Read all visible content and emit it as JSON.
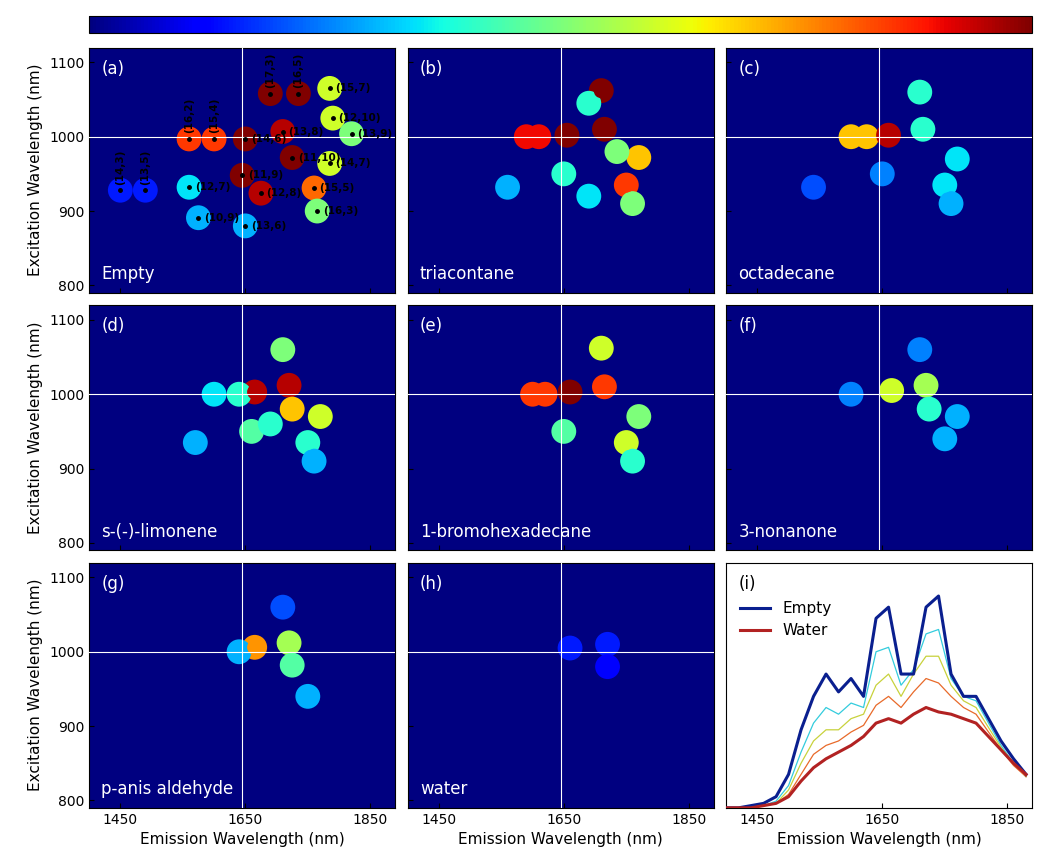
{
  "colorbar": {
    "range": [
      0,
      1
    ],
    "ticks": []
  },
  "chart_data": [
    {
      "type": "heatmap",
      "panel_label": "(a)",
      "sample": "Empty",
      "ylabel": "Excitation Wavelength (nm)",
      "xlim": [
        1400,
        1890
      ],
      "ylim": [
        790,
        1120
      ],
      "xticks": [
        1450,
        1650,
        1850
      ],
      "yticks": [
        800,
        900,
        1000,
        1100
      ],
      "tick_labels": "y",
      "crosshair": [
        1645,
        1000
      ],
      "peaks": [
        {
          "x": 1450,
          "y": 928,
          "intensity": 0.15,
          "label": "(14,3)"
        },
        {
          "x": 1490,
          "y": 928,
          "intensity": 0.15,
          "label": "(13,5)"
        },
        {
          "x": 1560,
          "y": 932,
          "intensity": 0.35,
          "label": "(12,7)"
        },
        {
          "x": 1575,
          "y": 891,
          "intensity": 0.3,
          "label": "(10,9)"
        },
        {
          "x": 1560,
          "y": 997,
          "intensity": 0.85,
          "label": "(16,2)"
        },
        {
          "x": 1600,
          "y": 997,
          "intensity": 0.85,
          "label": "(15,4)"
        },
        {
          "x": 1650,
          "y": 997,
          "intensity": 1.0,
          "label": "(14,6)"
        },
        {
          "x": 1645,
          "y": 948,
          "intensity": 1.0,
          "label": "(11,9)"
        },
        {
          "x": 1675,
          "y": 924,
          "intensity": 0.95,
          "label": "(12,8)"
        },
        {
          "x": 1650,
          "y": 880,
          "intensity": 0.3,
          "label": "(13,6)"
        },
        {
          "x": 1690,
          "y": 1058,
          "intensity": 1.0,
          "label": "(17,3)"
        },
        {
          "x": 1735,
          "y": 1058,
          "intensity": 1.0,
          "label": "(16,5)"
        },
        {
          "x": 1785,
          "y": 1065,
          "intensity": 0.6,
          "label": "(15,7)"
        },
        {
          "x": 1710,
          "y": 1007,
          "intensity": 0.95,
          "label": "(13,8)"
        },
        {
          "x": 1790,
          "y": 1025,
          "intensity": 0.6,
          "label": "(12,10)"
        },
        {
          "x": 1725,
          "y": 972,
          "intensity": 1.0,
          "label": "(11,10)"
        },
        {
          "x": 1820,
          "y": 1004,
          "intensity": 0.5,
          "label": "(13,9)"
        },
        {
          "x": 1785,
          "y": 964,
          "intensity": 0.6,
          "label": "(14,7)"
        },
        {
          "x": 1760,
          "y": 931,
          "intensity": 0.8,
          "label": "(15,5)"
        },
        {
          "x": 1765,
          "y": 900,
          "intensity": 0.5,
          "label": "(16,3)"
        }
      ]
    },
    {
      "type": "heatmap",
      "panel_label": "(b)",
      "sample": "triacontane",
      "xlim": [
        1400,
        1890
      ],
      "ylim": [
        790,
        1120
      ],
      "xticks": [
        1450,
        1650,
        1850
      ],
      "yticks": [
        800,
        900,
        1000,
        1100
      ],
      "tick_labels": false,
      "crosshair": [
        1645,
        1000
      ],
      "peaks": [
        {
          "x": 1590,
          "y": 1000,
          "intensity": 0.9
        },
        {
          "x": 1610,
          "y": 1000,
          "intensity": 0.9
        },
        {
          "x": 1655,
          "y": 1002,
          "intensity": 1.0
        },
        {
          "x": 1715,
          "y": 1010,
          "intensity": 1.0
        },
        {
          "x": 1710,
          "y": 1062,
          "intensity": 1.0
        },
        {
          "x": 1690,
          "y": 1045,
          "intensity": 0.4
        },
        {
          "x": 1770,
          "y": 972,
          "intensity": 0.7
        },
        {
          "x": 1750,
          "y": 935,
          "intensity": 0.85
        },
        {
          "x": 1760,
          "y": 910,
          "intensity": 0.5
        },
        {
          "x": 1735,
          "y": 980,
          "intensity": 0.5
        },
        {
          "x": 1650,
          "y": 950,
          "intensity": 0.4
        },
        {
          "x": 1560,
          "y": 932,
          "intensity": 0.3
        },
        {
          "x": 1690,
          "y": 920,
          "intensity": 0.35
        }
      ]
    },
    {
      "type": "heatmap",
      "panel_label": "(c)",
      "sample": "octadecane",
      "xlim": [
        1400,
        1890
      ],
      "ylim": [
        790,
        1120
      ],
      "xticks": [
        1450,
        1650,
        1850
      ],
      "yticks": [
        800,
        900,
        1000,
        1100
      ],
      "tick_labels": false,
      "crosshair": [
        1645,
        1000
      ],
      "peaks": [
        {
          "x": 1600,
          "y": 1000,
          "intensity": 0.7
        },
        {
          "x": 1625,
          "y": 1000,
          "intensity": 0.7
        },
        {
          "x": 1660,
          "y": 1002,
          "intensity": 0.95
        },
        {
          "x": 1715,
          "y": 1010,
          "intensity": 0.4
        },
        {
          "x": 1710,
          "y": 1060,
          "intensity": 0.4
        },
        {
          "x": 1770,
          "y": 970,
          "intensity": 0.35
        },
        {
          "x": 1750,
          "y": 935,
          "intensity": 0.35
        },
        {
          "x": 1760,
          "y": 910,
          "intensity": 0.3
        },
        {
          "x": 1650,
          "y": 950,
          "intensity": 0.25
        },
        {
          "x": 1540,
          "y": 932,
          "intensity": 0.2
        }
      ]
    },
    {
      "type": "heatmap",
      "panel_label": "(d)",
      "sample": "s-(-)-limonene",
      "ylabel": "Excitation Wavelength (nm)",
      "xlim": [
        1400,
        1890
      ],
      "ylim": [
        790,
        1120
      ],
      "xticks": [
        1450,
        1650,
        1850
      ],
      "yticks": [
        800,
        900,
        1000,
        1100
      ],
      "tick_labels": "y",
      "crosshair": [
        1645,
        1000
      ],
      "peaks": [
        {
          "x": 1665,
          "y": 1003,
          "intensity": 0.95
        },
        {
          "x": 1720,
          "y": 1012,
          "intensity": 0.95
        },
        {
          "x": 1725,
          "y": 980,
          "intensity": 0.7
        },
        {
          "x": 1770,
          "y": 970,
          "intensity": 0.6
        },
        {
          "x": 1710,
          "y": 1060,
          "intensity": 0.5
        },
        {
          "x": 1600,
          "y": 1000,
          "intensity": 0.35
        },
        {
          "x": 1640,
          "y": 1000,
          "intensity": 0.4
        },
        {
          "x": 1660,
          "y": 950,
          "intensity": 0.45
        },
        {
          "x": 1690,
          "y": 960,
          "intensity": 0.4
        },
        {
          "x": 1750,
          "y": 935,
          "intensity": 0.4
        },
        {
          "x": 1570,
          "y": 935,
          "intensity": 0.3
        },
        {
          "x": 1760,
          "y": 910,
          "intensity": 0.3
        }
      ]
    },
    {
      "type": "heatmap",
      "panel_label": "(e)",
      "sample": "1-bromohexadecane",
      "xlim": [
        1400,
        1890
      ],
      "ylim": [
        790,
        1120
      ],
      "xticks": [
        1450,
        1650,
        1850
      ],
      "yticks": [
        800,
        900,
        1000,
        1100
      ],
      "tick_labels": false,
      "crosshair": [
        1645,
        1000
      ],
      "peaks": [
        {
          "x": 1600,
          "y": 1000,
          "intensity": 0.85
        },
        {
          "x": 1620,
          "y": 1000,
          "intensity": 0.85
        },
        {
          "x": 1660,
          "y": 1003,
          "intensity": 1.0
        },
        {
          "x": 1715,
          "y": 1010,
          "intensity": 0.85
        },
        {
          "x": 1710,
          "y": 1062,
          "intensity": 0.6
        },
        {
          "x": 1750,
          "y": 935,
          "intensity": 0.6
        },
        {
          "x": 1770,
          "y": 970,
          "intensity": 0.5
        },
        {
          "x": 1650,
          "y": 950,
          "intensity": 0.45
        },
        {
          "x": 1760,
          "y": 910,
          "intensity": 0.4
        }
      ]
    },
    {
      "type": "heatmap",
      "panel_label": "(f)",
      "sample": "3-nonanone",
      "xlim": [
        1400,
        1890
      ],
      "ylim": [
        790,
        1120
      ],
      "xticks": [
        1450,
        1650,
        1850
      ],
      "yticks": [
        800,
        900,
        1000,
        1100
      ],
      "tick_labels": false,
      "crosshair": [
        1645,
        1000
      ],
      "peaks": [
        {
          "x": 1665,
          "y": 1005,
          "intensity": 0.6
        },
        {
          "x": 1720,
          "y": 1012,
          "intensity": 0.55
        },
        {
          "x": 1725,
          "y": 980,
          "intensity": 0.4
        },
        {
          "x": 1770,
          "y": 970,
          "intensity": 0.3
        },
        {
          "x": 1750,
          "y": 940,
          "intensity": 0.3
        },
        {
          "x": 1600,
          "y": 1000,
          "intensity": 0.25
        },
        {
          "x": 1710,
          "y": 1060,
          "intensity": 0.25
        }
      ]
    },
    {
      "type": "heatmap",
      "panel_label": "(g)",
      "sample": "p-anis aldehyde",
      "ylabel": "Excitation Wavelength (nm)",
      "xlabel": "Emission Wavelength (nm)",
      "xlim": [
        1400,
        1890
      ],
      "ylim": [
        790,
        1120
      ],
      "xticks": [
        1450,
        1650,
        1850
      ],
      "yticks": [
        800,
        900,
        1000,
        1100
      ],
      "tick_labels": true,
      "crosshair": [
        1645,
        1000
      ],
      "peaks": [
        {
          "x": 1665,
          "y": 1006,
          "intensity": 0.75
        },
        {
          "x": 1720,
          "y": 1012,
          "intensity": 0.55
        },
        {
          "x": 1725,
          "y": 982,
          "intensity": 0.45
        },
        {
          "x": 1640,
          "y": 1000,
          "intensity": 0.3
        },
        {
          "x": 1750,
          "y": 940,
          "intensity": 0.3
        },
        {
          "x": 1710,
          "y": 1060,
          "intensity": 0.2
        }
      ]
    },
    {
      "type": "heatmap",
      "panel_label": "(h)",
      "sample": "water",
      "xlabel": "Emission Wavelength (nm)",
      "xlim": [
        1400,
        1890
      ],
      "ylim": [
        790,
        1120
      ],
      "xticks": [
        1450,
        1650,
        1850
      ],
      "yticks": [
        800,
        900,
        1000,
        1100
      ],
      "tick_labels": "x",
      "crosshair": [
        1645,
        1000
      ],
      "peaks": [
        {
          "x": 1660,
          "y": 1005,
          "intensity": 0.15
        },
        {
          "x": 1720,
          "y": 1010,
          "intensity": 0.15
        },
        {
          "x": 1720,
          "y": 980,
          "intensity": 0.12
        }
      ]
    },
    {
      "type": "line",
      "panel_label": "(i)",
      "xlabel": "Emission Wavelength (nm)",
      "xlim": [
        1400,
        1890
      ],
      "ylim": [
        0,
        1.1
      ],
      "xticks": [
        1450,
        1650,
        1850
      ],
      "yticks": [],
      "tick_labels": "x",
      "legend": "upper left",
      "x": [
        1400,
        1420,
        1440,
        1460,
        1480,
        1500,
        1520,
        1540,
        1560,
        1580,
        1600,
        1620,
        1640,
        1660,
        1680,
        1700,
        1720,
        1740,
        1760,
        1780,
        1800,
        1820,
        1840,
        1860,
        1880
      ],
      "series": [
        {
          "color": "#33ccdd",
          "values": [
            0,
            0,
            0,
            0.01,
            0.03,
            0.1,
            0.25,
            0.38,
            0.45,
            0.42,
            0.47,
            0.45,
            0.7,
            0.72,
            0.55,
            0.62,
            0.78,
            0.8,
            0.58,
            0.5,
            0.48,
            0.38,
            0.28,
            0.2,
            0.14
          ]
        },
        {
          "color": "#c8d23c",
          "values": [
            0,
            0,
            0,
            0.01,
            0.02,
            0.08,
            0.2,
            0.3,
            0.35,
            0.35,
            0.4,
            0.42,
            0.55,
            0.6,
            0.5,
            0.6,
            0.68,
            0.68,
            0.55,
            0.48,
            0.45,
            0.36,
            0.27,
            0.2,
            0.14
          ]
        },
        {
          "color": "#e86a2a",
          "values": [
            0,
            0,
            0,
            0.01,
            0.02,
            0.06,
            0.15,
            0.24,
            0.28,
            0.3,
            0.34,
            0.37,
            0.46,
            0.5,
            0.45,
            0.52,
            0.58,
            0.56,
            0.5,
            0.45,
            0.42,
            0.34,
            0.26,
            0.19,
            0.14
          ]
        },
        {
          "name": "Empty",
          "color": "#0a1f8f",
          "values": [
            0,
            0,
            0.01,
            0.02,
            0.05,
            0.15,
            0.35,
            0.5,
            0.6,
            0.52,
            0.58,
            0.5,
            0.85,
            0.9,
            0.6,
            0.6,
            0.9,
            0.95,
            0.6,
            0.5,
            0.5,
            0.4,
            0.3,
            0.22,
            0.15
          ]
        },
        {
          "name": "Water",
          "color": "#b22222",
          "values": [
            0,
            0,
            0,
            0.01,
            0.02,
            0.05,
            0.12,
            0.18,
            0.22,
            0.25,
            0.28,
            0.32,
            0.38,
            0.4,
            0.38,
            0.42,
            0.45,
            0.43,
            0.42,
            0.4,
            0.38,
            0.32,
            0.26,
            0.2,
            0.15
          ]
        }
      ]
    }
  ]
}
